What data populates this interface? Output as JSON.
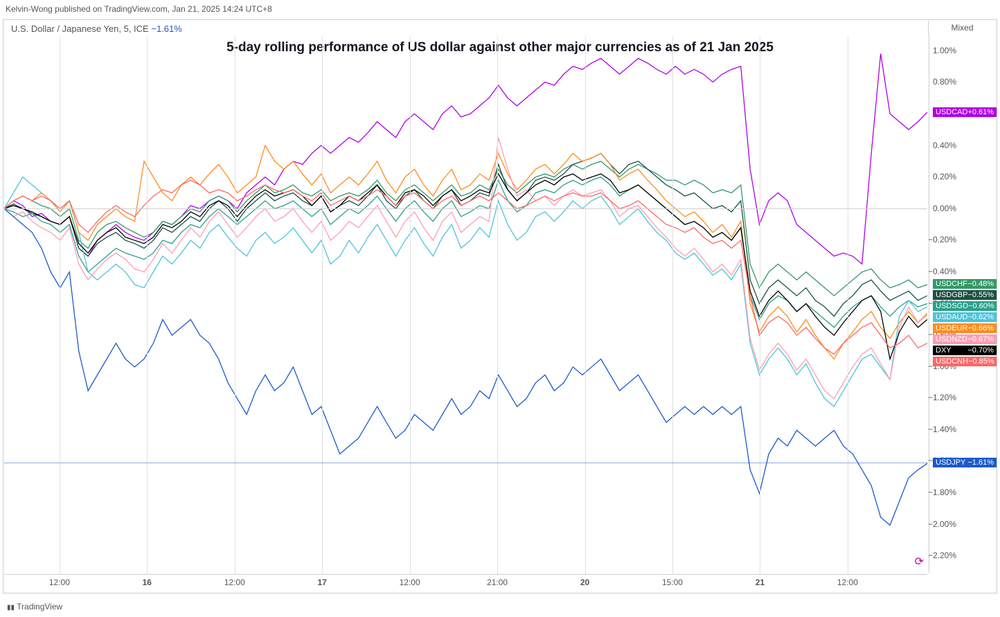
{
  "attribution": "Kelvin-Wong published on TradingView.com, Jan 21, 2025 14:24 UTC+8",
  "instrument": {
    "name": "U.S. Dollar / Japanese Yen, 5, ICE",
    "pct": "−1.61%"
  },
  "mixed_label": "Mixed",
  "title": "5-day rolling performance of US dollar against other major currencies as of 21 Jan 2025",
  "logo": "TradingView",
  "chart": {
    "ylim": [
      -2.3,
      1.1
    ],
    "yticks": [
      "1.00%",
      "0.80%",
      "0.60%",
      "0.40%",
      "0.20%",
      "0.00%",
      "−0.20%",
      "−0.40%",
      "−0.60%",
      "−0.80%",
      "−1.00%",
      "−1.20%",
      "−1.40%",
      "−1.60%",
      "−1.80%",
      "−2.00%",
      "−2.20%"
    ],
    "ytick_vals": [
      1.0,
      0.8,
      0.6,
      0.4,
      0.2,
      0.0,
      -0.2,
      -0.4,
      -0.6,
      -0.8,
      -1.0,
      -1.2,
      -1.4,
      -1.6,
      -1.8,
      -2.0,
      -2.2
    ],
    "xticks": [
      {
        "pos": 0.06,
        "label": "12:00"
      },
      {
        "pos": 0.155,
        "label": "16",
        "major": true
      },
      {
        "pos": 0.25,
        "label": "12:00"
      },
      {
        "pos": 0.345,
        "label": "17",
        "major": true
      },
      {
        "pos": 0.44,
        "label": "12:00"
      },
      {
        "pos": 0.535,
        "label": "21:00"
      },
      {
        "pos": 0.63,
        "label": "20",
        "major": true
      },
      {
        "pos": 0.725,
        "label": "15:00"
      },
      {
        "pos": 0.82,
        "label": "21",
        "major": true
      },
      {
        "pos": 0.915,
        "label": "12:00"
      }
    ],
    "series": [
      {
        "name": "USDCAD",
        "value": "+0.61%",
        "color": "#b200e6",
        "end_y": 0.61,
        "data": [
          0.0,
          0.05,
          0.02,
          -0.05,
          -0.03,
          -0.08,
          -0.1,
          -0.05,
          -0.25,
          -0.3,
          -0.2,
          -0.15,
          -0.1,
          -0.15,
          -0.18,
          -0.2,
          -0.15,
          -0.08,
          -0.1,
          -0.05,
          0.02,
          0.0,
          0.05,
          0.08,
          0.05,
          0.0,
          0.1,
          0.15,
          0.2,
          0.15,
          0.25,
          0.3,
          0.28,
          0.35,
          0.4,
          0.35,
          0.4,
          0.45,
          0.42,
          0.48,
          0.55,
          0.5,
          0.45,
          0.55,
          0.6,
          0.55,
          0.5,
          0.6,
          0.65,
          0.58,
          0.6,
          0.65,
          0.7,
          0.78,
          0.7,
          0.65,
          0.7,
          0.75,
          0.8,
          0.78,
          0.85,
          0.9,
          0.88,
          0.92,
          0.95,
          0.9,
          0.85,
          0.9,
          0.95,
          0.92,
          0.88,
          0.85,
          0.9,
          0.85,
          0.88,
          0.85,
          0.8,
          0.85,
          0.88,
          0.9,
          0.25,
          -0.1,
          0.05,
          0.1,
          0.05,
          -0.1,
          -0.15,
          -0.2,
          -0.25,
          -0.3,
          -0.28,
          -0.3,
          -0.35,
          0.35,
          0.98,
          0.6,
          0.55,
          0.5,
          0.55,
          0.61
        ]
      },
      {
        "name": "USDCHF",
        "value": "−0.48%",
        "color": "#339966",
        "end_y": -0.48,
        "data": [
          0.0,
          0.05,
          0.08,
          0.05,
          0.02,
          0.0,
          -0.05,
          0.0,
          -0.2,
          -0.25,
          -0.15,
          -0.1,
          -0.08,
          -0.12,
          -0.15,
          -0.18,
          -0.15,
          -0.08,
          -0.1,
          -0.05,
          0.0,
          -0.02,
          0.05,
          0.08,
          0.05,
          -0.02,
          0.05,
          0.1,
          0.15,
          0.1,
          0.12,
          0.15,
          0.1,
          0.08,
          0.12,
          0.05,
          0.08,
          0.1,
          0.08,
          0.12,
          0.18,
          0.1,
          0.05,
          0.12,
          0.15,
          0.1,
          0.05,
          0.1,
          0.15,
          0.08,
          0.1,
          0.15,
          0.12,
          0.25,
          0.15,
          0.1,
          0.15,
          0.2,
          0.22,
          0.2,
          0.25,
          0.28,
          0.25,
          0.28,
          0.3,
          0.25,
          0.2,
          0.25,
          0.28,
          0.25,
          0.22,
          0.18,
          0.18,
          0.15,
          0.18,
          0.15,
          0.1,
          0.12,
          0.1,
          0.15,
          -0.35,
          -0.5,
          -0.4,
          -0.35,
          -0.4,
          -0.45,
          -0.4,
          -0.45,
          -0.5,
          -0.55,
          -0.5,
          -0.45,
          -0.4,
          -0.38,
          -0.45,
          -0.5,
          -0.48,
          -0.45,
          -0.5,
          -0.48
        ]
      },
      {
        "name": "USDGBP",
        "value": "−0.55%",
        "color": "#1c5044",
        "end_y": -0.55,
        "data": [
          0.0,
          0.03,
          0.0,
          -0.03,
          -0.05,
          -0.08,
          -0.1,
          -0.05,
          -0.25,
          -0.3,
          -0.22,
          -0.18,
          -0.15,
          -0.2,
          -0.22,
          -0.25,
          -0.2,
          -0.12,
          -0.15,
          -0.1,
          -0.05,
          -0.08,
          0.0,
          0.05,
          0.0,
          -0.08,
          0.0,
          0.05,
          0.1,
          0.05,
          0.08,
          0.1,
          0.05,
          0.02,
          0.08,
          -0.02,
          0.02,
          0.05,
          0.02,
          0.08,
          0.15,
          0.05,
          0.0,
          0.08,
          0.12,
          0.05,
          0.0,
          0.08,
          0.12,
          0.02,
          0.05,
          0.1,
          0.08,
          0.28,
          0.12,
          0.05,
          0.1,
          0.18,
          0.2,
          0.18,
          0.22,
          0.28,
          0.3,
          0.32,
          0.35,
          0.28,
          0.22,
          0.28,
          0.3,
          0.25,
          0.2,
          0.15,
          0.12,
          0.08,
          0.1,
          0.05,
          0.0,
          0.02,
          -0.02,
          0.05,
          -0.45,
          -0.6,
          -0.5,
          -0.45,
          -0.5,
          -0.55,
          -0.5,
          -0.58,
          -0.62,
          -0.68,
          -0.6,
          -0.55,
          -0.48,
          -0.45,
          -0.52,
          -0.58,
          -0.55,
          -0.52,
          -0.58,
          -0.55
        ]
      },
      {
        "name": "USDSGD",
        "value": "−0.60%",
        "color": "#2ca089",
        "end_y": -0.6,
        "data": [
          0.0,
          -0.02,
          -0.05,
          -0.03,
          -0.08,
          -0.1,
          -0.15,
          -0.1,
          -0.3,
          -0.4,
          -0.35,
          -0.3,
          -0.25,
          -0.28,
          -0.3,
          -0.32,
          -0.28,
          -0.2,
          -0.22,
          -0.15,
          -0.1,
          -0.12,
          -0.05,
          0.0,
          -0.05,
          -0.1,
          -0.05,
          0.0,
          0.05,
          0.0,
          0.02,
          0.05,
          0.0,
          -0.05,
          0.0,
          -0.1,
          -0.05,
          0.0,
          -0.03,
          0.02,
          0.08,
          0.0,
          -0.08,
          0.0,
          0.05,
          -0.02,
          -0.08,
          0.0,
          0.05,
          -0.05,
          -0.02,
          0.02,
          0.0,
          0.18,
          0.05,
          -0.02,
          0.02,
          0.1,
          0.12,
          0.1,
          0.15,
          0.18,
          0.15,
          0.18,
          0.2,
          0.15,
          0.08,
          0.12,
          0.15,
          0.1,
          0.05,
          0.0,
          -0.05,
          -0.1,
          -0.08,
          -0.12,
          -0.18,
          -0.15,
          -0.2,
          -0.12,
          -0.55,
          -0.7,
          -0.6,
          -0.55,
          -0.58,
          -0.65,
          -0.6,
          -0.65,
          -0.7,
          -0.75,
          -0.68,
          -0.62,
          -0.58,
          -0.55,
          -0.62,
          -0.68,
          -0.62,
          -0.58,
          -0.62,
          -0.6
        ]
      },
      {
        "name": "USDAUD",
        "value": "−0.62%",
        "color": "#4dc4d8",
        "end_y": -0.62,
        "data": [
          0.0,
          0.1,
          0.2,
          0.15,
          0.1,
          0.05,
          0.0,
          0.05,
          -0.15,
          -0.4,
          -0.45,
          -0.4,
          -0.35,
          -0.4,
          -0.48,
          -0.5,
          -0.4,
          -0.3,
          -0.35,
          -0.28,
          -0.2,
          -0.25,
          -0.15,
          -0.1,
          -0.18,
          -0.25,
          -0.3,
          -0.2,
          -0.15,
          -0.22,
          -0.18,
          -0.12,
          -0.2,
          -0.28,
          -0.2,
          -0.35,
          -0.3,
          -0.2,
          -0.28,
          -0.18,
          -0.1,
          -0.2,
          -0.3,
          -0.2,
          -0.12,
          -0.22,
          -0.3,
          -0.18,
          -0.1,
          -0.25,
          -0.2,
          -0.12,
          -0.18,
          0.05,
          -0.1,
          -0.2,
          -0.15,
          -0.05,
          -0.02,
          -0.08,
          -0.02,
          0.05,
          0.0,
          0.05,
          0.08,
          0.0,
          -0.1,
          -0.05,
          0.0,
          -0.08,
          -0.15,
          -0.2,
          -0.28,
          -0.32,
          -0.28,
          -0.35,
          -0.42,
          -0.38,
          -0.45,
          -0.35,
          -0.85,
          -1.05,
          -0.95,
          -0.88,
          -0.95,
          -1.05,
          -0.98,
          -1.1,
          -1.2,
          -1.25,
          -1.15,
          -1.05,
          -0.95,
          -0.92,
          -1.0,
          -1.08,
          -0.68,
          -0.58,
          -0.65,
          -0.62
        ]
      },
      {
        "name": "USDEUR",
        "value": "−0.66%",
        "color": "#ff8c1a",
        "end_y": -0.66,
        "data": [
          0.0,
          0.05,
          0.08,
          0.05,
          0.1,
          0.05,
          -0.02,
          0.05,
          -0.15,
          -0.2,
          -0.1,
          -0.05,
          0.0,
          -0.05,
          -0.08,
          0.3,
          0.2,
          0.1,
          0.05,
          0.15,
          0.2,
          0.15,
          0.22,
          0.28,
          0.2,
          0.1,
          0.15,
          0.2,
          0.4,
          0.3,
          0.25,
          0.3,
          0.22,
          0.15,
          0.22,
          0.1,
          0.15,
          0.2,
          0.15,
          0.22,
          0.3,
          0.18,
          0.1,
          0.2,
          0.25,
          0.15,
          0.08,
          0.18,
          0.25,
          0.12,
          0.15,
          0.22,
          0.18,
          0.35,
          0.22,
          0.12,
          0.18,
          0.25,
          0.28,
          0.22,
          0.28,
          0.35,
          0.3,
          0.32,
          0.35,
          0.28,
          0.18,
          0.22,
          0.25,
          0.18,
          0.12,
          0.05,
          0.0,
          -0.05,
          -0.02,
          -0.08,
          -0.15,
          -0.1,
          -0.18,
          -0.08,
          -0.6,
          -0.78,
          -0.68,
          -0.62,
          -0.68,
          -0.78,
          -0.7,
          -0.8,
          -0.88,
          -0.95,
          -0.85,
          -0.78,
          -0.7,
          -0.65,
          -0.75,
          -0.82,
          -0.72,
          -0.65,
          -0.72,
          -0.66
        ]
      },
      {
        "name": "USDNZD",
        "value": "−0.67%",
        "color": "#ff9db3",
        "end_y": -0.67,
        "data": [
          0.0,
          -0.05,
          -0.02,
          -0.08,
          -0.12,
          -0.15,
          -0.2,
          -0.12,
          -0.35,
          -0.45,
          -0.38,
          -0.32,
          -0.28,
          -0.32,
          -0.38,
          -0.4,
          -0.32,
          -0.22,
          -0.28,
          -0.2,
          -0.12,
          -0.18,
          -0.08,
          -0.02,
          -0.1,
          -0.18,
          -0.12,
          -0.05,
          0.0,
          -0.08,
          -0.05,
          0.0,
          -0.08,
          -0.15,
          -0.08,
          -0.2,
          -0.15,
          -0.08,
          -0.12,
          -0.05,
          0.02,
          -0.08,
          -0.18,
          -0.08,
          -0.02,
          -0.12,
          -0.2,
          -0.08,
          -0.02,
          -0.15,
          -0.1,
          -0.05,
          -0.08,
          0.45,
          0.25,
          0.08,
          0.12,
          0.05,
          0.08,
          0.02,
          0.08,
          0.12,
          0.08,
          0.1,
          0.12,
          0.05,
          -0.05,
          0.0,
          0.02,
          -0.05,
          -0.12,
          -0.18,
          -0.25,
          -0.3,
          -0.25,
          -0.32,
          -0.4,
          -0.35,
          -0.42,
          -0.32,
          -0.82,
          -1.02,
          -0.92,
          -0.85,
          -0.92,
          -1.02,
          -0.95,
          -1.05,
          -1.15,
          -1.2,
          -1.1,
          -1.0,
          -0.92,
          -0.88,
          -0.98,
          -1.08,
          -0.75,
          -0.62,
          -0.72,
          -0.67
        ]
      },
      {
        "name": "DXY",
        "value": "−0.70%",
        "color": "#000000",
        "end_y": -0.7,
        "data": [
          0.0,
          0.02,
          0.0,
          -0.02,
          -0.05,
          -0.08,
          -0.1,
          -0.05,
          -0.22,
          -0.28,
          -0.2,
          -0.15,
          -0.12,
          -0.18,
          -0.2,
          -0.22,
          -0.18,
          -0.1,
          -0.12,
          -0.08,
          -0.02,
          -0.05,
          0.02,
          0.05,
          0.02,
          -0.05,
          0.02,
          0.08,
          0.12,
          0.08,
          0.1,
          0.12,
          0.08,
          0.02,
          0.08,
          -0.02,
          0.02,
          0.08,
          0.05,
          0.1,
          0.15,
          0.08,
          0.02,
          0.1,
          0.12,
          0.08,
          0.02,
          0.08,
          0.12,
          0.05,
          0.08,
          0.12,
          0.1,
          0.22,
          0.12,
          0.05,
          0.1,
          0.15,
          0.18,
          0.15,
          0.2,
          0.22,
          0.18,
          0.2,
          0.22,
          0.18,
          0.1,
          0.12,
          0.15,
          0.1,
          0.05,
          0.0,
          -0.05,
          -0.1,
          -0.08,
          -0.12,
          -0.18,
          -0.15,
          -0.2,
          -0.12,
          -0.52,
          -0.68,
          -0.58,
          -0.52,
          -0.58,
          -0.65,
          -0.6,
          -0.68,
          -0.75,
          -0.8,
          -0.72,
          -0.65,
          -0.58,
          -0.55,
          -0.65,
          -0.95,
          -0.78,
          -0.68,
          -0.75,
          -0.7
        ]
      },
      {
        "name": "USDCNH",
        "value": "−0.85%",
        "color": "#ff6666",
        "end_y": -0.85,
        "data": [
          0.0,
          0.05,
          0.08,
          0.05,
          0.08,
          0.05,
          0.0,
          0.05,
          -0.1,
          -0.15,
          -0.08,
          -0.02,
          0.02,
          -0.02,
          -0.05,
          0.02,
          0.08,
          0.12,
          0.1,
          0.15,
          0.18,
          0.15,
          0.1,
          0.12,
          0.1,
          0.05,
          0.08,
          0.12,
          0.15,
          0.12,
          0.1,
          0.12,
          0.08,
          0.05,
          0.1,
          0.02,
          0.05,
          0.08,
          0.05,
          0.08,
          0.12,
          0.08,
          0.02,
          0.08,
          0.1,
          0.05,
          0.0,
          0.05,
          0.08,
          0.02,
          0.05,
          0.08,
          0.05,
          0.1,
          0.05,
          0.0,
          0.02,
          0.05,
          0.08,
          0.05,
          0.08,
          0.1,
          0.08,
          0.08,
          0.1,
          0.05,
          0.0,
          0.02,
          0.05,
          0.0,
          -0.05,
          -0.1,
          -0.12,
          -0.15,
          -0.12,
          -0.18,
          -0.22,
          -0.2,
          -0.25,
          -0.2,
          -0.55,
          -0.8,
          -0.72,
          -0.68,
          -0.72,
          -0.8,
          -0.75,
          -0.82,
          -0.88,
          -0.92,
          -0.85,
          -0.8,
          -0.75,
          -0.72,
          -0.8,
          -0.88,
          -0.85,
          -0.8,
          -0.88,
          -0.85
        ]
      },
      {
        "name": "USDJPY",
        "value": "−1.61%",
        "color": "#1b5ac9",
        "end_y": -1.61,
        "data": [
          0.0,
          -0.05,
          -0.1,
          -0.15,
          -0.25,
          -0.4,
          -0.5,
          -0.4,
          -0.9,
          -1.15,
          -1.05,
          -0.95,
          -0.85,
          -0.95,
          -1.0,
          -0.95,
          -0.85,
          -0.7,
          -0.8,
          -0.75,
          -0.7,
          -0.8,
          -0.85,
          -0.95,
          -1.1,
          -1.2,
          -1.3,
          -1.15,
          -1.05,
          -1.15,
          -1.1,
          -1.0,
          -1.15,
          -1.3,
          -1.25,
          -1.4,
          -1.55,
          -1.5,
          -1.45,
          -1.35,
          -1.25,
          -1.35,
          -1.45,
          -1.4,
          -1.3,
          -1.35,
          -1.4,
          -1.3,
          -1.2,
          -1.3,
          -1.25,
          -1.15,
          -1.2,
          -1.05,
          -1.15,
          -1.25,
          -1.2,
          -1.1,
          -1.05,
          -1.15,
          -1.1,
          -1.0,
          -1.05,
          -1.0,
          -0.95,
          -1.05,
          -1.15,
          -1.1,
          -1.05,
          -1.15,
          -1.25,
          -1.35,
          -1.3,
          -1.25,
          -1.3,
          -1.25,
          -1.3,
          -1.25,
          -1.3,
          -1.25,
          -1.65,
          -1.8,
          -1.55,
          -1.45,
          -1.5,
          -1.4,
          -1.45,
          -1.5,
          -1.45,
          -1.4,
          -1.5,
          -1.55,
          -1.65,
          -1.75,
          -1.95,
          -2.0,
          -1.85,
          -1.7,
          -1.65,
          -1.61
        ]
      }
    ]
  }
}
